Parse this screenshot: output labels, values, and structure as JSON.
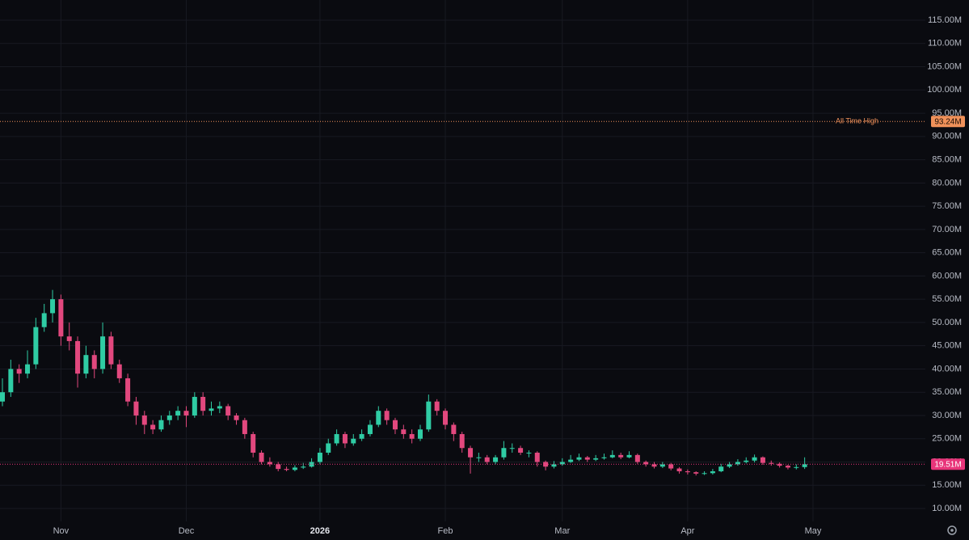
{
  "chart_data": {
    "type": "candlestick",
    "categories": [
      null,
      null,
      null,
      null,
      null,
      null,
      null,
      "Nov",
      null,
      null,
      null,
      null,
      null,
      null,
      null,
      null,
      null,
      null,
      null,
      null,
      null,
      null,
      "Dec",
      null,
      null,
      null,
      null,
      null,
      null,
      null,
      null,
      null,
      null,
      null,
      null,
      null,
      null,
      null,
      "2026",
      null,
      null,
      null,
      null,
      null,
      null,
      null,
      null,
      null,
      null,
      null,
      null,
      null,
      null,
      "Feb",
      null,
      null,
      null,
      null,
      null,
      null,
      null,
      null,
      null,
      null,
      null,
      null,
      null,
      "Mar",
      null,
      null,
      null,
      null,
      null,
      null,
      null,
      null,
      null,
      null,
      null,
      null,
      null,
      null,
      "Apr",
      null,
      null,
      null,
      null,
      null,
      null,
      null,
      null,
      null,
      null,
      null,
      null,
      null,
      null,
      "May"
    ],
    "open": [
      33,
      35,
      40,
      39,
      41,
      49,
      52,
      55,
      47,
      46,
      39,
      43,
      40,
      47,
      41,
      38,
      33,
      30,
      28,
      27,
      29,
      30,
      31,
      30,
      34,
      31,
      31.5,
      32,
      30,
      29,
      26,
      22,
      20,
      19.5,
      18.5,
      18.3,
      18.8,
      19,
      20,
      22,
      24,
      26,
      24,
      25,
      26,
      28,
      31,
      29,
      27,
      26,
      25,
      27,
      33,
      31,
      28,
      26,
      23,
      21,
      21,
      20,
      21,
      23,
      23,
      22,
      22,
      20,
      19,
      19.5,
      20,
      20.5,
      21,
      20.5,
      20.8,
      21,
      21.5,
      21,
      21.5,
      20,
      19.5,
      19,
      19.5,
      18.6,
      18,
      17.8,
      17.5,
      17.6,
      18,
      19,
      19.5,
      20,
      20.3,
      21,
      19.8,
      19.6,
      19.2,
      18.8,
      18.9,
      null
    ],
    "high": [
      38,
      42,
      41,
      44,
      51,
      54,
      57,
      56,
      50,
      47,
      45,
      44,
      50,
      48,
      42,
      39,
      34,
      31,
      29,
      30,
      31,
      32,
      32,
      35,
      35,
      33,
      33,
      32.5,
      30.5,
      29.5,
      26.5,
      22.5,
      21,
      20,
      19,
      19.3,
      19.8,
      20.8,
      23,
      25,
      27,
      26.5,
      26,
      27,
      29,
      32,
      31.5,
      29.5,
      28,
      27,
      28,
      34.5,
      33.5,
      31.5,
      28.5,
      26.5,
      23.5,
      22,
      21.5,
      21.5,
      24.5,
      24,
      23.5,
      22.5,
      22.3,
      20.3,
      20.2,
      20.8,
      21.5,
      21.8,
      21.3,
      21.5,
      21.8,
      22.5,
      22,
      22.3,
      21.8,
      20.3,
      20,
      20,
      19.8,
      18.9,
      18.4,
      18,
      18,
      18.5,
      19.6,
      20,
      20.6,
      21,
      21.6,
      21.2,
      20.3,
      19.9,
      19.4,
      19.5,
      21,
      null
    ],
    "low": [
      32,
      34,
      37,
      38,
      40,
      48,
      50,
      45,
      44,
      36,
      38,
      38,
      39,
      40,
      37,
      32,
      28,
      26,
      26,
      26.5,
      28,
      29,
      27.5,
      29.5,
      30,
      30,
      30.5,
      29,
      28,
      25,
      21,
      19.5,
      19,
      18,
      18,
      18,
      18.5,
      18.8,
      19.5,
      21.5,
      23.5,
      23,
      23.5,
      24.5,
      25.5,
      27.5,
      28,
      26,
      25,
      24,
      24.5,
      26.5,
      30,
      27,
      24.5,
      22,
      17.5,
      20,
      19.5,
      19.5,
      20.5,
      22,
      21.5,
      21,
      19,
      18.2,
      18.6,
      19.2,
      19.8,
      20.2,
      20,
      20.2,
      20.5,
      20.8,
      20.6,
      20.8,
      19.6,
      19,
      18.6,
      18.7,
      18.2,
      17.5,
      17.3,
      17.1,
      17.2,
      17.3,
      17.8,
      18.7,
      19.2,
      19.7,
      19.9,
      19.4,
      19.2,
      18.8,
      18.4,
      18.4,
      18.5,
      null
    ],
    "close": [
      35,
      40,
      39,
      41,
      49,
      52,
      55,
      47,
      46,
      39,
      43,
      40,
      47,
      41,
      38,
      33,
      30,
      28,
      27,
      29,
      30,
      31,
      30,
      34,
      31,
      31.5,
      32,
      30,
      29,
      26,
      22,
      20,
      19.5,
      18.5,
      18.3,
      18.8,
      19,
      20,
      22,
      24,
      26,
      24,
      25,
      26,
      28,
      31,
      29,
      27,
      26,
      25,
      27,
      33,
      31,
      28,
      26,
      23,
      21,
      21,
      20,
      21,
      23,
      23,
      22,
      22,
      20,
      19,
      19.5,
      20,
      20.5,
      21,
      20.5,
      20.8,
      21,
      21.5,
      21,
      21.5,
      20,
      19.5,
      19,
      19.5,
      18.6,
      18,
      17.8,
      17.5,
      17.6,
      18,
      19,
      19.5,
      20,
      20.3,
      21,
      19.8,
      19.6,
      19.2,
      18.8,
      18.9,
      19.51,
      null
    ],
    "up_color": "#2fcca4",
    "down_color": "#e2487e",
    "ylim": [
      7.22,
      119.35
    ],
    "yticks": [
      {
        "value": 10,
        "label": "10.00M"
      },
      {
        "value": 15,
        "label": "15.00M"
      },
      {
        "value": 20,
        "label": "20.00M"
      },
      {
        "value": 25,
        "label": "25.00M"
      },
      {
        "value": 30,
        "label": "30.00M"
      },
      {
        "value": 35,
        "label": "35.00M"
      },
      {
        "value": 40,
        "label": "40.00M"
      },
      {
        "value": 45,
        "label": "45.00M"
      },
      {
        "value": 50,
        "label": "50.00M"
      },
      {
        "value": 55,
        "label": "55.00M"
      },
      {
        "value": 60,
        "label": "60.00M"
      },
      {
        "value": 65,
        "label": "65.00M"
      },
      {
        "value": 70,
        "label": "70.00M"
      },
      {
        "value": 75,
        "label": "75.00M"
      },
      {
        "value": 80,
        "label": "80.00M"
      },
      {
        "value": 85,
        "label": "85.00M"
      },
      {
        "value": 90,
        "label": "90.00M"
      },
      {
        "value": 95,
        "label": "95.00M"
      },
      {
        "value": 100,
        "label": "100.00M"
      },
      {
        "value": 105,
        "label": "105.00M"
      },
      {
        "value": 110,
        "label": "110.00M"
      },
      {
        "value": 115,
        "label": "115.00M"
      }
    ],
    "grid": true,
    "reference_line": {
      "label": "All Time High",
      "value": 93.24,
      "value_label": "93.24M",
      "color": "#f0915a"
    },
    "last_price": {
      "value": 19.51,
      "value_label": "19.51M",
      "color": "#e8357a"
    }
  }
}
